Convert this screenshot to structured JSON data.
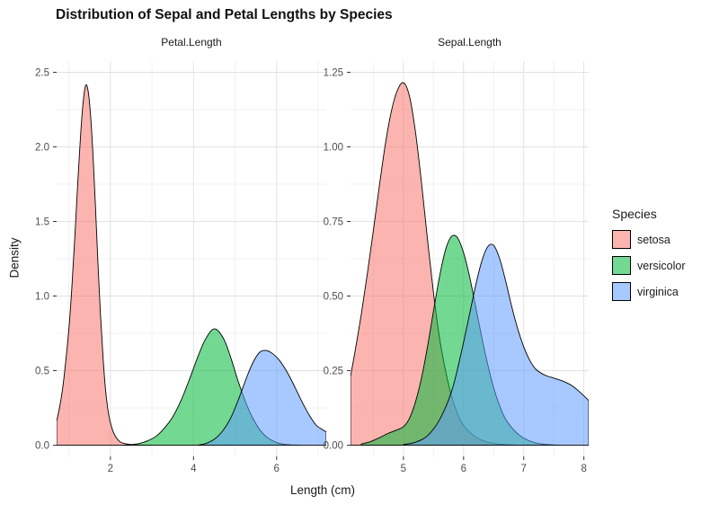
{
  "title": "Distribution of Sepal and Petal Lengths by Species",
  "axes": {
    "x_title": "Length (cm)",
    "y_title": "Density"
  },
  "legend": {
    "title": "Species",
    "fill_opacity": 0.55,
    "entries": [
      {
        "label": "setosa",
        "color": "#F8766D"
      },
      {
        "label": "versicolor",
        "color": "#00BA38"
      },
      {
        "label": "virginica",
        "color": "#619CFF"
      }
    ]
  },
  "chart_data": [
    {
      "type": "area",
      "facet": "Petal.Length",
      "xlabel": "Length (cm)",
      "ylabel": "Density",
      "xlim": [
        1.0,
        6.9
      ],
      "ylim": [
        0,
        2.5
      ],
      "xticks": [
        2,
        4,
        6
      ],
      "xtick_labels": [
        "2",
        "4",
        "6"
      ],
      "yticks": [
        0,
        0.5,
        1.0,
        1.5,
        2.0,
        2.5
      ],
      "ytick_labels": [
        "0.0",
        "0.5",
        "1.0",
        "1.5",
        "2.0",
        "2.5"
      ],
      "grid": true,
      "legend_position": "right",
      "series": [
        {
          "name": "setosa",
          "points": [
            [
              0.705,
              0.16
            ],
            [
              0.78,
              0.26
            ],
            [
              0.85,
              0.38
            ],
            [
              0.92,
              0.55
            ],
            [
              1.0,
              0.78
            ],
            [
              1.07,
              1.05
            ],
            [
              1.14,
              1.38
            ],
            [
              1.21,
              1.74
            ],
            [
              1.28,
              2.07
            ],
            [
              1.34,
              2.29
            ],
            [
              1.4,
              2.41
            ],
            [
              1.46,
              2.38
            ],
            [
              1.52,
              2.22
            ],
            [
              1.58,
              1.95
            ],
            [
              1.64,
              1.6
            ],
            [
              1.7,
              1.22
            ],
            [
              1.76,
              0.88
            ],
            [
              1.82,
              0.6
            ],
            [
              1.88,
              0.38
            ],
            [
              1.95,
              0.22
            ],
            [
              2.03,
              0.12
            ],
            [
              2.12,
              0.06
            ],
            [
              2.25,
              0.02
            ],
            [
              2.45,
              0.006
            ],
            [
              2.7,
              0.001
            ],
            [
              3.0,
              0
            ]
          ]
        },
        {
          "name": "versicolor",
          "points": [
            [
              2.3,
              0
            ],
            [
              2.5,
              0.004
            ],
            [
              2.7,
              0.012
            ],
            [
              2.9,
              0.03
            ],
            [
              3.1,
              0.06
            ],
            [
              3.3,
              0.115
            ],
            [
              3.5,
              0.19
            ],
            [
              3.7,
              0.3
            ],
            [
              3.9,
              0.44
            ],
            [
              4.1,
              0.59
            ],
            [
              4.25,
              0.69
            ],
            [
              4.4,
              0.76
            ],
            [
              4.5,
              0.78
            ],
            [
              4.6,
              0.765
            ],
            [
              4.75,
              0.7
            ],
            [
              4.9,
              0.585
            ],
            [
              5.05,
              0.45
            ],
            [
              5.2,
              0.33
            ],
            [
              5.35,
              0.225
            ],
            [
              5.5,
              0.145
            ],
            [
              5.65,
              0.085
            ],
            [
              5.8,
              0.047
            ],
            [
              6.0,
              0.018
            ],
            [
              6.2,
              0.006
            ],
            [
              6.45,
              0.001
            ],
            [
              6.6,
              0
            ]
          ]
        },
        {
          "name": "virginica",
          "points": [
            [
              4.1,
              0
            ],
            [
              4.3,
              0.012
            ],
            [
              4.5,
              0.04
            ],
            [
              4.7,
              0.095
            ],
            [
              4.9,
              0.185
            ],
            [
              5.1,
              0.32
            ],
            [
              5.3,
              0.47
            ],
            [
              5.45,
              0.565
            ],
            [
              5.6,
              0.625
            ],
            [
              5.75,
              0.635
            ],
            [
              5.9,
              0.615
            ],
            [
              6.05,
              0.575
            ],
            [
              6.2,
              0.515
            ],
            [
              6.35,
              0.44
            ],
            [
              6.5,
              0.355
            ],
            [
              6.65,
              0.27
            ],
            [
              6.8,
              0.195
            ],
            [
              6.95,
              0.135
            ],
            [
              7.1,
              0.105
            ],
            [
              7.195,
              0.09
            ]
          ]
        }
      ]
    },
    {
      "type": "area",
      "facet": "Sepal.Length",
      "xlabel": "Length (cm)",
      "ylabel": "Density",
      "xlim": [
        4.3,
        7.9
      ],
      "ylim": [
        0,
        1.25
      ],
      "xticks": [
        5,
        6,
        7,
        8
      ],
      "xtick_labels": [
        "5",
        "6",
        "7",
        "8"
      ],
      "yticks": [
        0,
        0.25,
        0.5,
        0.75,
        1.0,
        1.25
      ],
      "ytick_labels": [
        "0.00",
        "0.25",
        "0.50",
        "0.75",
        "1.00",
        "1.25"
      ],
      "grid": true,
      "legend_position": "right",
      "series": [
        {
          "name": "setosa",
          "points": [
            [
              4.12,
              0.23
            ],
            [
              4.2,
              0.32
            ],
            [
              4.3,
              0.44
            ],
            [
              4.4,
              0.575
            ],
            [
              4.5,
              0.72
            ],
            [
              4.6,
              0.87
            ],
            [
              4.7,
              1.01
            ],
            [
              4.8,
              1.12
            ],
            [
              4.9,
              1.19
            ],
            [
              5.0,
              1.215
            ],
            [
              5.1,
              1.17
            ],
            [
              5.2,
              1.05
            ],
            [
              5.3,
              0.88
            ],
            [
              5.4,
              0.69
            ],
            [
              5.5,
              0.51
            ],
            [
              5.6,
              0.36
            ],
            [
              5.7,
              0.25
            ],
            [
              5.8,
              0.165
            ],
            [
              5.9,
              0.105
            ],
            [
              6.0,
              0.066
            ],
            [
              6.15,
              0.035
            ],
            [
              6.3,
              0.017
            ],
            [
              6.5,
              0.006
            ],
            [
              6.7,
              0.002
            ],
            [
              6.9,
              0
            ]
          ]
        },
        {
          "name": "versicolor",
          "points": [
            [
              4.3,
              0.004
            ],
            [
              4.45,
              0.012
            ],
            [
              4.6,
              0.025
            ],
            [
              4.75,
              0.04
            ],
            [
              4.9,
              0.052
            ],
            [
              5.0,
              0.062
            ],
            [
              5.1,
              0.09
            ],
            [
              5.2,
              0.145
            ],
            [
              5.3,
              0.225
            ],
            [
              5.4,
              0.33
            ],
            [
              5.5,
              0.45
            ],
            [
              5.6,
              0.565
            ],
            [
              5.7,
              0.655
            ],
            [
              5.8,
              0.7
            ],
            [
              5.9,
              0.695
            ],
            [
              6.0,
              0.645
            ],
            [
              6.1,
              0.565
            ],
            [
              6.2,
              0.465
            ],
            [
              6.3,
              0.365
            ],
            [
              6.4,
              0.272
            ],
            [
              6.5,
              0.193
            ],
            [
              6.6,
              0.132
            ],
            [
              6.7,
              0.087
            ],
            [
              6.85,
              0.048
            ],
            [
              7.0,
              0.024
            ],
            [
              7.2,
              0.008
            ],
            [
              7.4,
              0.002
            ],
            [
              7.6,
              0
            ]
          ]
        },
        {
          "name": "virginica",
          "points": [
            [
              5.0,
              0.002
            ],
            [
              5.2,
              0.01
            ],
            [
              5.4,
              0.032
            ],
            [
              5.6,
              0.085
            ],
            [
              5.8,
              0.18
            ],
            [
              5.95,
              0.3
            ],
            [
              6.1,
              0.44
            ],
            [
              6.2,
              0.535
            ],
            [
              6.3,
              0.615
            ],
            [
              6.4,
              0.665
            ],
            [
              6.5,
              0.67
            ],
            [
              6.6,
              0.625
            ],
            [
              6.7,
              0.55
            ],
            [
              6.8,
              0.465
            ],
            [
              6.9,
              0.39
            ],
            [
              7.0,
              0.33
            ],
            [
              7.1,
              0.285
            ],
            [
              7.2,
              0.255
            ],
            [
              7.35,
              0.235
            ],
            [
              7.5,
              0.225
            ],
            [
              7.65,
              0.215
            ],
            [
              7.8,
              0.2
            ],
            [
              7.95,
              0.175
            ],
            [
              8.08,
              0.15
            ]
          ]
        }
      ]
    }
  ]
}
